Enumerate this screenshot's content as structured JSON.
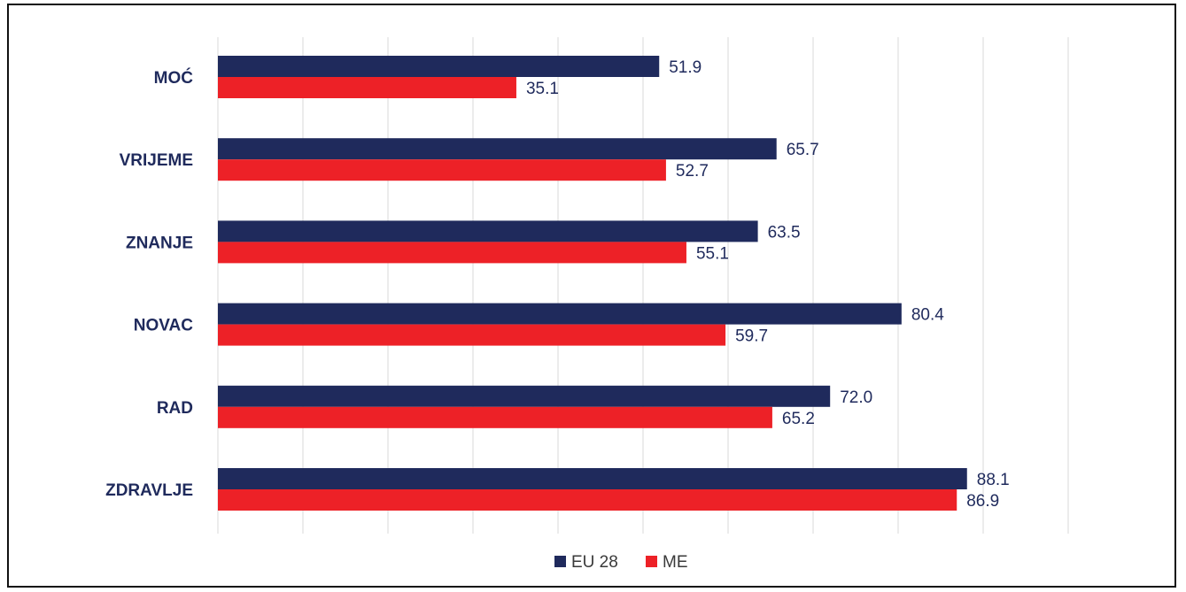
{
  "chart_data": {
    "type": "bar",
    "orientation": "horizontal",
    "categories": [
      "MOĆ",
      "VRIJEME",
      "ZNANJE",
      "NOVAC",
      "RAD",
      "ZDRAVLJE"
    ],
    "series": [
      {
        "name": "EU 28",
        "color": "#1f2a5c",
        "values": [
          51.9,
          65.7,
          63.5,
          80.4,
          72.0,
          88.1
        ],
        "labels": [
          "51.9",
          "65.7",
          "63.5",
          "80.4",
          "72.0",
          "88.1"
        ]
      },
      {
        "name": "ME",
        "color": "#ed2127",
        "values": [
          35.1,
          52.7,
          55.1,
          59.7,
          65.2,
          86.9
        ],
        "labels": [
          "35.1",
          "52.7",
          "55.1",
          "59.7",
          "65.2",
          "86.9"
        ]
      }
    ],
    "xlim": [
      0,
      100
    ],
    "grid": true,
    "legend_position": "bottom"
  }
}
